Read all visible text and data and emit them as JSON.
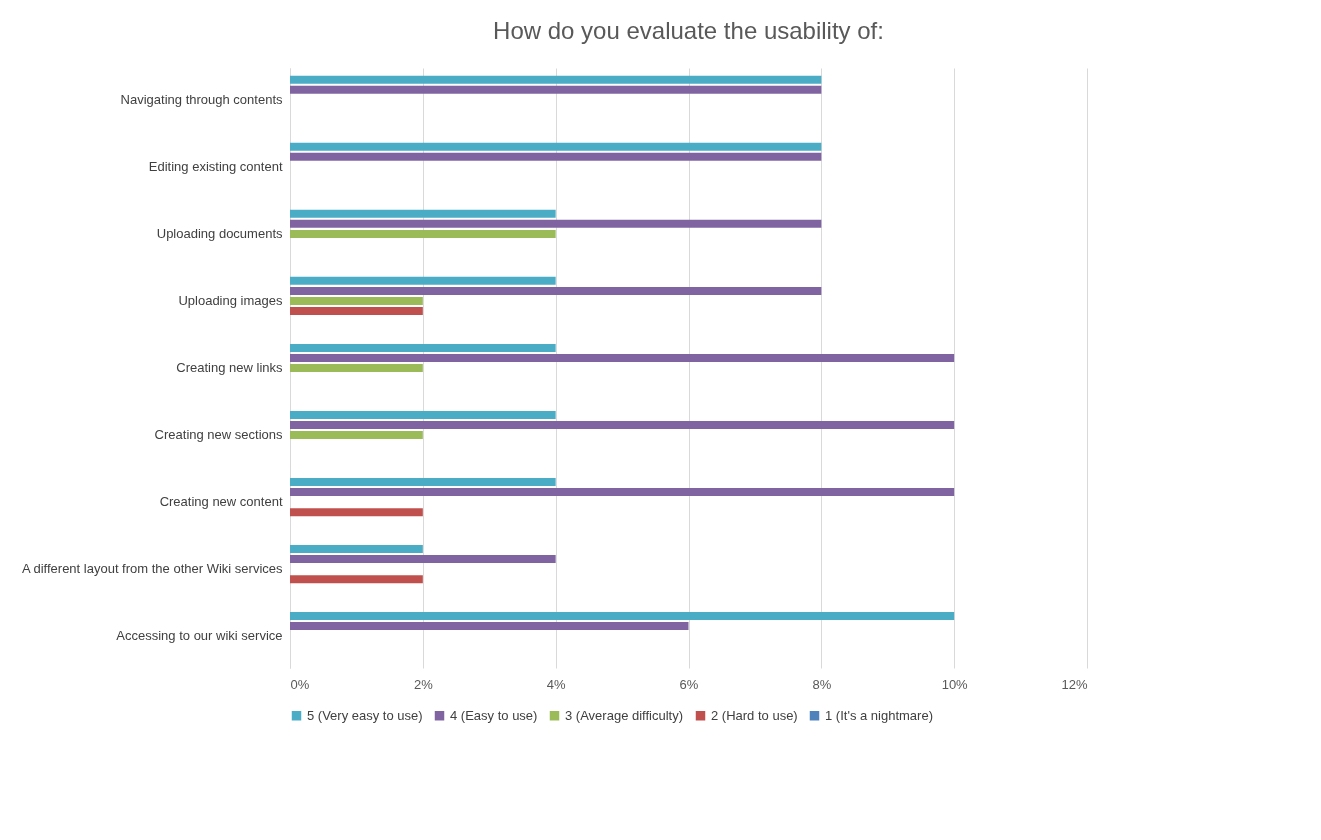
{
  "chart_data": {
    "type": "bar",
    "orientation": "horizontal",
    "title": "How do you evaluate the usability of:",
    "categories": [
      "Navigating through contents",
      "Editing existing content",
      "Uploading documents",
      "Uploading images",
      "Creating new links",
      "Creating new sections",
      "Creating new content",
      "A different layout from the other Wiki services",
      "Accessing to our wiki service"
    ],
    "series": [
      {
        "name": "5 (Very easy to use)",
        "color": "#4bacc6",
        "values": [
          8,
          8,
          4,
          4,
          4,
          4,
          4,
          2,
          10
        ]
      },
      {
        "name": "4 (Easy to use)",
        "color": "#8064a2",
        "values": [
          8,
          8,
          8,
          8,
          10,
          10,
          10,
          4,
          6
        ]
      },
      {
        "name": "3 (Average difficulty)",
        "color": "#9bbb59",
        "values": [
          0,
          0,
          4,
          2,
          2,
          2,
          0,
          0,
          0
        ]
      },
      {
        "name": "2 (Hard to use)",
        "color": "#c0504d",
        "values": [
          0,
          0,
          0,
          2,
          0,
          0,
          2,
          2,
          0
        ]
      },
      {
        "name": "1 (It's a nightmare)",
        "color": "#4f81bd",
        "values": [
          0,
          0,
          0,
          0,
          0,
          0,
          0,
          0,
          0
        ]
      }
    ],
    "xlim": [
      0,
      12
    ],
    "xticks": [
      {
        "value": 0,
        "label": "0%"
      },
      {
        "value": 2,
        "label": "2%"
      },
      {
        "value": 4,
        "label": "4%"
      },
      {
        "value": 6,
        "label": "6%"
      },
      {
        "value": 8,
        "label": "8%"
      },
      {
        "value": 10,
        "label": "10%"
      },
      {
        "value": 12,
        "label": "12%"
      }
    ],
    "grid": "x",
    "legend": "bottom"
  }
}
